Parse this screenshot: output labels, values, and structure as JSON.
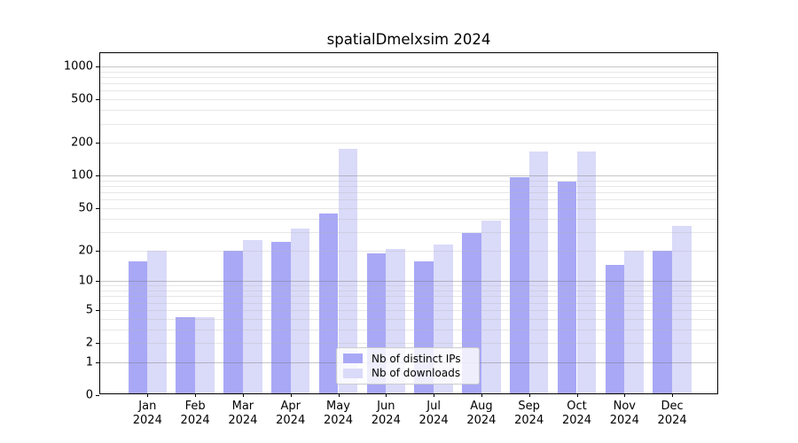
{
  "title": "spatialDmelxsim 2024",
  "chart_data": {
    "type": "bar",
    "title": "spatialDmelxsim 2024",
    "categories": [
      "Jan 2024",
      "Feb 2024",
      "Mar 2024",
      "Apr 2024",
      "May 2024",
      "Jun 2024",
      "Jul 2024",
      "Aug 2024",
      "Sep 2024",
      "Oct 2024",
      "Nov 2024",
      "Dec 2024"
    ],
    "series": [
      {
        "name": "Nb of distinct IPs",
        "color": "#a8a8f6",
        "values": [
          15,
          4,
          19,
          23,
          43,
          18,
          15,
          28,
          93,
          85,
          14,
          19
        ]
      },
      {
        "name": "Nb of downloads",
        "color": "#dadaf9",
        "values": [
          19,
          4,
          24,
          31,
          170,
          20,
          22,
          37,
          160,
          160,
          19,
          33
        ]
      }
    ],
    "xlabel": "",
    "ylabel": "",
    "y_scale": "log10(1+x)",
    "y_ticks": [
      0,
      1,
      2,
      5,
      10,
      20,
      50,
      100,
      200,
      500,
      1000
    ],
    "ylim": [
      0,
      1300
    ],
    "grid": "horizontal",
    "major_grid_values": [
      1,
      10,
      100,
      1000
    ],
    "legend_position": "inside-bottom-center",
    "colors": {
      "axis": "#000000",
      "major_grid": "#c8c8c8",
      "minor_grid": "#eaeaea",
      "background": "#ffffff"
    }
  }
}
